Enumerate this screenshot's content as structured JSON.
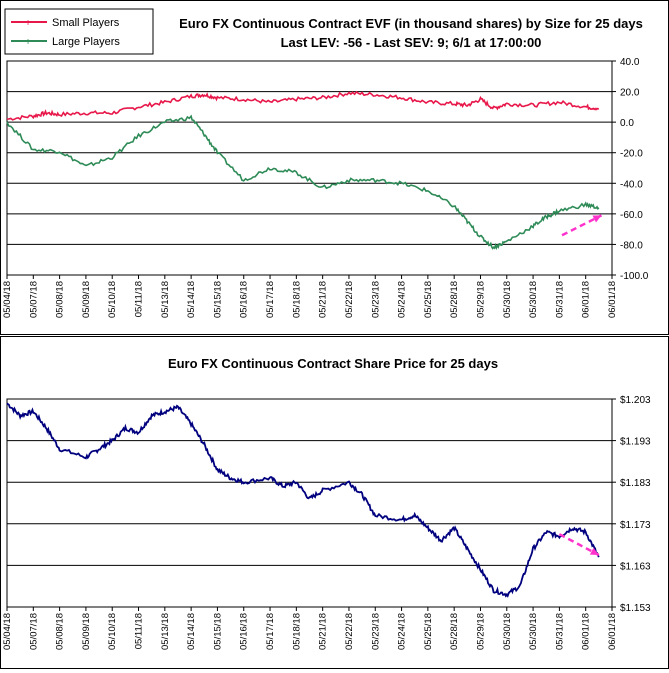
{
  "chart_data": [
    {
      "type": "line",
      "title": "Euro FX Continuous Contract EVF (in thousand shares) by Size for 25 days",
      "subtitle": "Last LEV: -56 - Last SEV: 9; 6/1 at 17:00:00",
      "xlabel": "",
      "ylabel": "",
      "ylim": [
        -100,
        40
      ],
      "yticks": [
        "40.0",
        "20.0",
        "0.0",
        "-20.0",
        "-40.0",
        "-60.0",
        "-80.0",
        "-100.0"
      ],
      "categories": [
        "05/04/18",
        "05/07/18",
        "05/08/18",
        "05/09/18",
        "05/10/18",
        "05/11/18",
        "05/13/18",
        "05/14/18",
        "05/15/18",
        "05/16/18",
        "05/17/18",
        "05/18/18",
        "05/21/18",
        "05/22/18",
        "05/23/18",
        "05/24/18",
        "05/25/18",
        "05/28/18",
        "05/29/18",
        "05/30/18",
        "05/30/18",
        "05/31/18",
        "06/01/18",
        "06/01/18"
      ],
      "legend": {
        "placement": "top-left",
        "entries": [
          "Small Players",
          "Large Players"
        ]
      },
      "grid": "horizontal",
      "series": [
        {
          "name": "Small Players",
          "color": "#e8174a",
          "values": [
            [
              0,
              2
            ],
            [
              1,
              4
            ],
            [
              1.5,
              6
            ],
            [
              2,
              5
            ],
            [
              3,
              6
            ],
            [
              4,
              6
            ],
            [
              5,
              10
            ],
            [
              6,
              13
            ],
            [
              7,
              17
            ],
            [
              7.5,
              18
            ],
            [
              8,
              16
            ],
            [
              9,
              15
            ],
            [
              10,
              13
            ],
            [
              11,
              15
            ],
            [
              12,
              16
            ],
            [
              13,
              19
            ],
            [
              14,
              18
            ],
            [
              15,
              16
            ],
            [
              16,
              13
            ],
            [
              17,
              12
            ],
            [
              17.5,
              11
            ],
            [
              18,
              15
            ],
            [
              18.5,
              9
            ],
            [
              19,
              12
            ],
            [
              20,
              11
            ],
            [
              21,
              13
            ],
            [
              22,
              10
            ],
            [
              22.5,
              9
            ]
          ]
        },
        {
          "name": "Large Players",
          "color": "#2e8b57",
          "values": [
            [
              0,
              0
            ],
            [
              1,
              -18
            ],
            [
              2,
              -19
            ],
            [
              3,
              -29
            ],
            [
              4,
              -23
            ],
            [
              5,
              -9
            ],
            [
              6,
              0
            ],
            [
              7,
              3
            ],
            [
              7.5,
              -8
            ],
            [
              8,
              -20
            ],
            [
              9,
              -38
            ],
            [
              10,
              -30
            ],
            [
              11,
              -33
            ],
            [
              12,
              -43
            ],
            [
              13,
              -38
            ],
            [
              14,
              -38
            ],
            [
              15,
              -40
            ],
            [
              16,
              -45
            ],
            [
              17,
              -55
            ],
            [
              17.5,
              -65
            ],
            [
              18,
              -75
            ],
            [
              18.5,
              -82
            ],
            [
              19,
              -78
            ],
            [
              20,
              -68
            ],
            [
              20.5,
              -62
            ],
            [
              21,
              -58
            ],
            [
              22,
              -54
            ],
            [
              22.5,
              -56
            ]
          ]
        }
      ],
      "annotation": {
        "type": "arrow",
        "color": "#ff33cc",
        "from": [
          21.1,
          -74
        ],
        "to": [
          22.6,
          -61
        ]
      }
    },
    {
      "type": "line",
      "title": "Euro FX Continuous Contract Share Price for 25 days",
      "xlabel": "",
      "ylabel": "",
      "ylim": [
        1.153,
        1.203
      ],
      "yticks": [
        "$1.203",
        "$1.193",
        "$1.183",
        "$1.173",
        "$1.163",
        "$1.153"
      ],
      "categories": [
        "05/04/18",
        "05/07/18",
        "05/08/18",
        "05/09/18",
        "05/10/18",
        "05/11/18",
        "05/13/18",
        "05/14/18",
        "05/15/18",
        "05/16/18",
        "05/17/18",
        "05/18/18",
        "05/21/18",
        "05/22/18",
        "05/23/18",
        "05/24/18",
        "05/25/18",
        "05/28/18",
        "05/29/18",
        "05/30/18",
        "05/30/18",
        "05/31/18",
        "06/01/18",
        "06/01/18"
      ],
      "grid": "horizontal",
      "series": [
        {
          "name": "",
          "color": "#00007f",
          "values": [
            [
              0,
              1.202
            ],
            [
              0.5,
              1.199
            ],
            [
              1,
              1.2
            ],
            [
              1.5,
              1.196
            ],
            [
              2,
              1.191
            ],
            [
              3,
              1.189
            ],
            [
              3.5,
              1.191
            ],
            [
              4,
              1.193
            ],
            [
              4.5,
              1.196
            ],
            [
              5,
              1.195
            ],
            [
              5.5,
              1.199
            ],
            [
              6,
              1.2
            ],
            [
              6.5,
              1.201
            ],
            [
              7,
              1.197
            ],
            [
              7.5,
              1.192
            ],
            [
              8,
              1.186
            ],
            [
              8.5,
              1.184
            ],
            [
              9,
              1.183
            ],
            [
              10,
              1.184
            ],
            [
              10.5,
              1.182
            ],
            [
              11,
              1.183
            ],
            [
              11.5,
              1.179
            ],
            [
              12,
              1.181
            ],
            [
              13,
              1.183
            ],
            [
              13.5,
              1.18
            ],
            [
              14,
              1.175
            ],
            [
              15,
              1.174
            ],
            [
              15.5,
              1.175
            ],
            [
              16,
              1.172
            ],
            [
              16.5,
              1.169
            ],
            [
              17,
              1.172
            ],
            [
              17.5,
              1.167
            ],
            [
              18,
              1.162
            ],
            [
              18.5,
              1.157
            ],
            [
              19,
              1.156
            ],
            [
              19.5,
              1.158
            ],
            [
              20,
              1.167
            ],
            [
              20.5,
              1.171
            ],
            [
              21,
              1.17
            ],
            [
              21.5,
              1.172
            ],
            [
              22,
              1.171
            ],
            [
              22.5,
              1.165
            ]
          ]
        }
      ],
      "annotation": {
        "type": "arrow",
        "color": "#ff33cc",
        "from": [
          21,
          1.1705
        ],
        "to": [
          22.5,
          1.1655
        ]
      }
    }
  ]
}
